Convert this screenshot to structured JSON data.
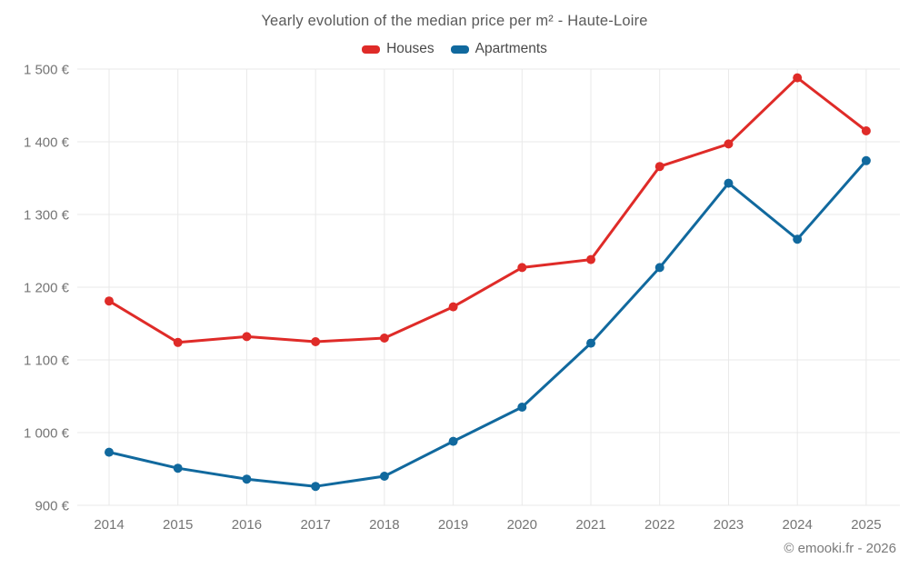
{
  "title": "Yearly evolution of the median price per m² - Haute-Loire",
  "attribution": "© emooki.fr - 2026",
  "legend": [
    {
      "label": "Houses",
      "color": "#df2b28"
    },
    {
      "label": "Apartments",
      "color": "#11699e"
    }
  ],
  "chart_data": {
    "type": "line",
    "title": "Yearly evolution of the median price per m² - Haute-Loire",
    "categories": [
      "2014",
      "2015",
      "2016",
      "2017",
      "2018",
      "2019",
      "2020",
      "2021",
      "2022",
      "2023",
      "2024",
      "2025"
    ],
    "series": [
      {
        "name": "Houses",
        "color": "#df2b28",
        "values": [
          1181,
          1124,
          1132,
          1125,
          1130,
          1173,
          1227,
          1238,
          1366,
          1397,
          1488,
          1415
        ]
      },
      {
        "name": "Apartments",
        "color": "#11699e",
        "values": [
          973,
          951,
          936,
          926,
          940,
          988,
          1035,
          1123,
          1227,
          1343,
          1266,
          1374
        ]
      }
    ],
    "ylim": [
      900,
      1500
    ],
    "y_tick_step": 100,
    "y_tick_labels": [
      "900 €",
      "1 000 €",
      "1 100 €",
      "1 200 €",
      "1 300 €",
      "1 400 €",
      "1 500 €"
    ],
    "currency_suffix": "€",
    "grid": true,
    "legend_position": "top",
    "xlabel": "",
    "ylabel": ""
  },
  "colors": {
    "grid": "#e9e9e9",
    "tick_label": "#757575",
    "title_text": "#5a5a5a"
  }
}
